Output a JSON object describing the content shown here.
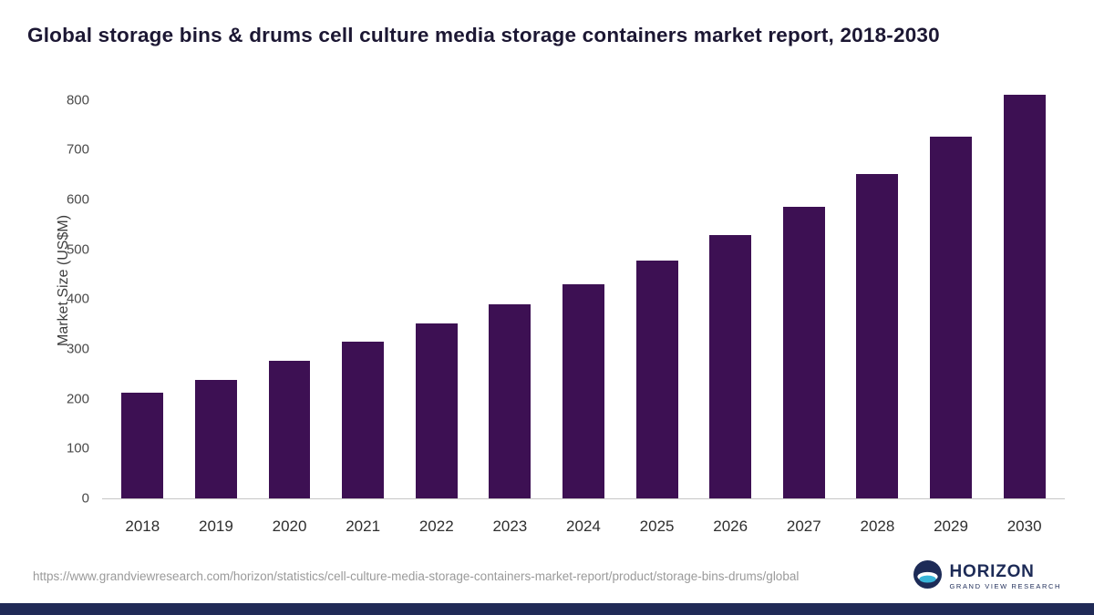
{
  "title": "Global storage bins & drums cell culture media storage containers market report, 2018-2030",
  "chart_data": {
    "type": "bar",
    "categories": [
      "2018",
      "2019",
      "2020",
      "2021",
      "2022",
      "2023",
      "2024",
      "2025",
      "2026",
      "2027",
      "2028",
      "2029",
      "2030"
    ],
    "values": [
      212,
      237,
      276,
      315,
      352,
      390,
      430,
      477,
      528,
      586,
      651,
      726,
      810
    ],
    "title": "Global storage bins & drums cell culture media storage containers market report, 2018-2030",
    "xlabel": "",
    "ylabel": "Market Size (US$M)",
    "ylim": [
      0,
      800
    ],
    "ytick_step": 100,
    "y_display_max": 825,
    "grid": false,
    "legend": false,
    "bar_color": "#3d1053"
  },
  "footer": {
    "source_url": "https://www.grandviewresearch.com/horizon/statistics/cell-culture-media-storage-containers-market-report/product/storage-bins-drums/global"
  },
  "branding": {
    "logo_title": "HORIZON",
    "logo_subtitle": "GRAND VIEW RESEARCH",
    "logo_icon": "horizon-circle-icon",
    "navy": "#1d2b57",
    "teal": "#39b5d8"
  },
  "colors": {
    "bar": "#3d1053",
    "title_text": "#1c1733",
    "axis_text": "#4a4a4a",
    "bottom_bar": "#202a56"
  }
}
